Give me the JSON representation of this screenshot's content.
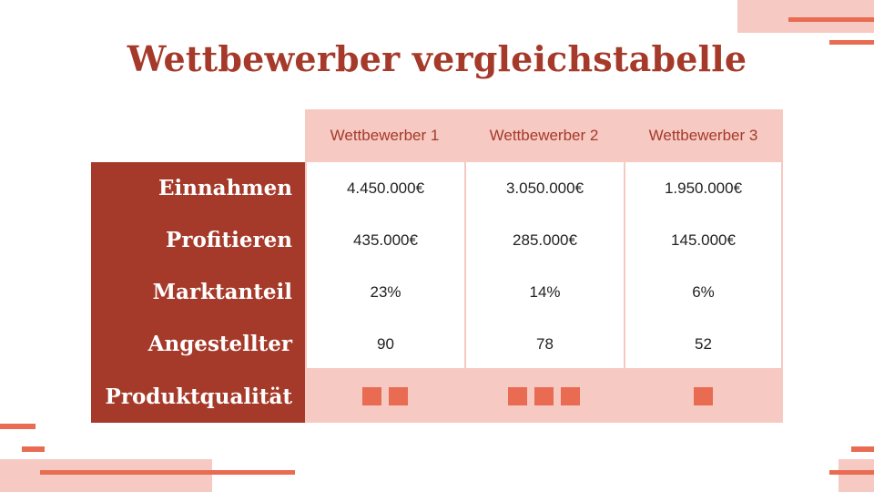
{
  "title": "Wettbewerber vergleichstabelle",
  "colors": {
    "accent_dark": "#a63a2a",
    "accent_light": "#f6c9c2",
    "accent_mid": "#e86b52"
  },
  "columns": [
    "Wettbewerber 1",
    "Wettbewerber 2",
    "Wettbewerber 3"
  ],
  "rows": [
    {
      "label": "Einnahmen",
      "values": [
        "4.450.000€",
        "3.050.000€",
        "1.950.000€"
      ]
    },
    {
      "label": "Profitieren",
      "values": [
        "435.000€",
        "285.000€",
        "145.000€"
      ]
    },
    {
      "label": "Marktanteil",
      "values": [
        "23%",
        "14%",
        "6%"
      ]
    },
    {
      "label": "Angestellter",
      "values": [
        "90",
        "78",
        "52"
      ]
    }
  ],
  "quality": {
    "label": "Produktqualität",
    "ratings": [
      2,
      3,
      1
    ]
  }
}
